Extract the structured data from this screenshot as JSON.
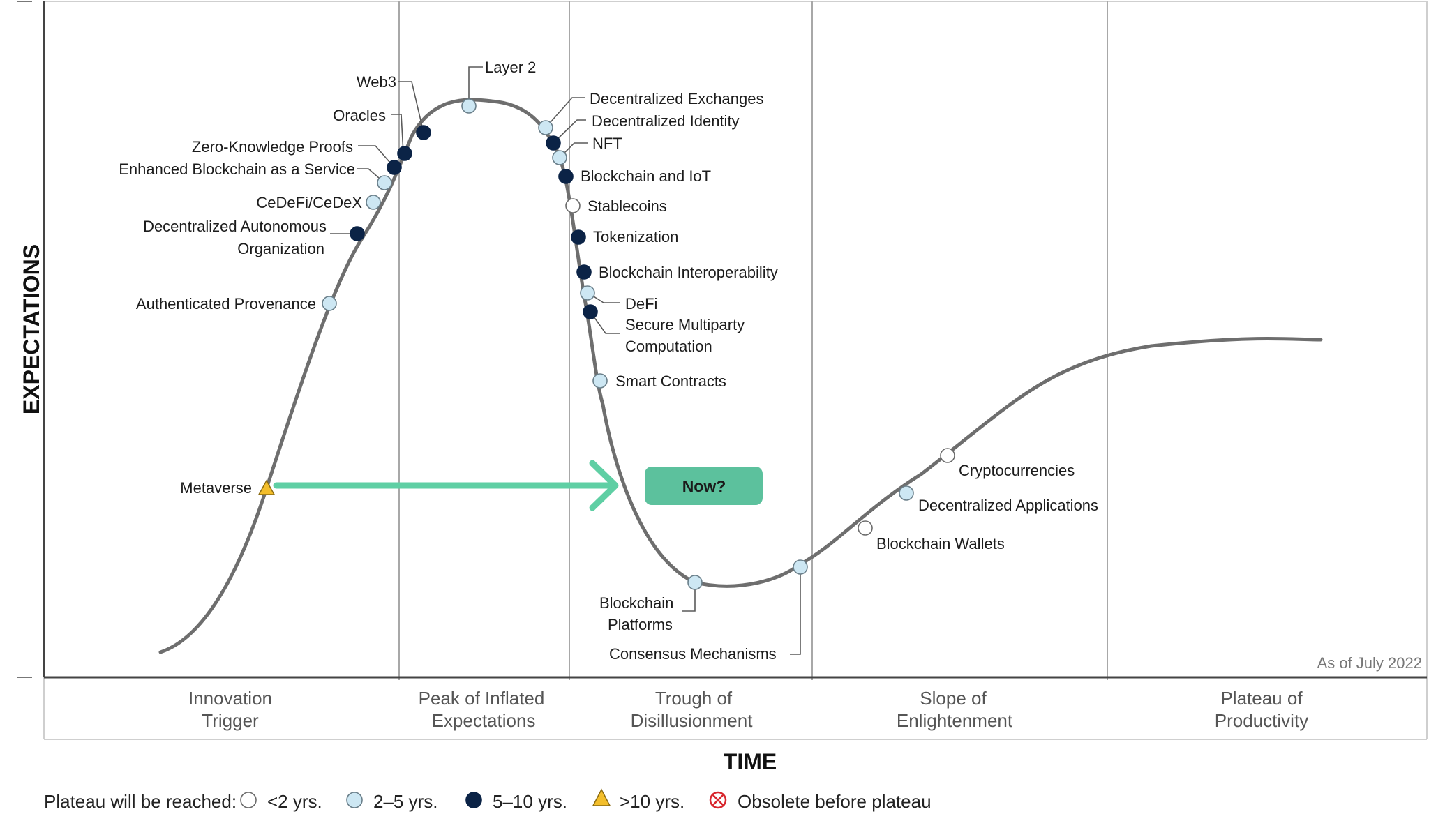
{
  "axes": {
    "y_label": "EXPECTATIONS",
    "x_label": "TIME"
  },
  "phases": [
    {
      "line1": "Innovation",
      "line2": "Trigger"
    },
    {
      "line1": "Peak of Inflated",
      "line2": "Expectations"
    },
    {
      "line1": "Trough of",
      "line2": "Disillusionment"
    },
    {
      "line1": "Slope of",
      "line2": "Enlightenment"
    },
    {
      "line1": "Plateau of",
      "line2": "Productivity"
    }
  ],
  "as_of": "As of July 2022",
  "callout": {
    "label": "Now?"
  },
  "legend": {
    "title": "Plateau will be reached:",
    "items": [
      {
        "label": "<2 yrs.",
        "category": "lt2"
      },
      {
        "label": "2–5 yrs.",
        "category": "2to5"
      },
      {
        "label": "5–10 yrs.",
        "category": "5to10"
      },
      {
        "label": ">10 yrs.",
        "category": "gt10"
      },
      {
        "label": "Obsolete before plateau",
        "category": "obsolete"
      }
    ]
  },
  "category_colors": {
    "lt2": "#ffffff",
    "2to5": "#cde7f3",
    "5to10": "#0b2346",
    "gt10": "#f3be2b",
    "obsolete": "#d8262d"
  },
  "colors": {
    "curve": "#6e6e6e",
    "arrow": "#5fcfa4",
    "now_box": "#5cc19d"
  },
  "technologies": [
    {
      "name": "Metaverse",
      "category": "gt10"
    },
    {
      "name": "Authenticated Provenance",
      "category": "2to5"
    },
    {
      "name": "Decentralized Autonomous Organization",
      "category": "5to10"
    },
    {
      "name": "CeDeFi/CeDeX",
      "category": "2to5"
    },
    {
      "name": "Enhanced Blockchain as a Service",
      "category": "2to5"
    },
    {
      "name": "Zero-Knowledge Proofs",
      "category": "5to10"
    },
    {
      "name": "Oracles",
      "category": "5to10"
    },
    {
      "name": "Web3",
      "category": "5to10"
    },
    {
      "name": "Layer 2",
      "category": "2to5"
    },
    {
      "name": "Decentralized Exchanges",
      "category": "2to5"
    },
    {
      "name": "Decentralized Identity",
      "category": "5to10"
    },
    {
      "name": "NFT",
      "category": "2to5"
    },
    {
      "name": "Blockchain and IoT",
      "category": "5to10"
    },
    {
      "name": "Stablecoins",
      "category": "lt2"
    },
    {
      "name": "Tokenization",
      "category": "5to10"
    },
    {
      "name": "Blockchain Interoperability",
      "category": "5to10"
    },
    {
      "name": "DeFi",
      "category": "2to5"
    },
    {
      "name": "Secure Multiparty Computation",
      "category": "5to10"
    },
    {
      "name": "Smart Contracts",
      "category": "2to5"
    },
    {
      "name": "Blockchain Platforms",
      "category": "2to5"
    },
    {
      "name": "Consensus Mechanisms",
      "category": "2to5"
    },
    {
      "name": "Blockchain Wallets",
      "category": "lt2"
    },
    {
      "name": "Decentralized Applications",
      "category": "2to5"
    },
    {
      "name": "Cryptocurrencies",
      "category": "lt2"
    }
  ]
}
